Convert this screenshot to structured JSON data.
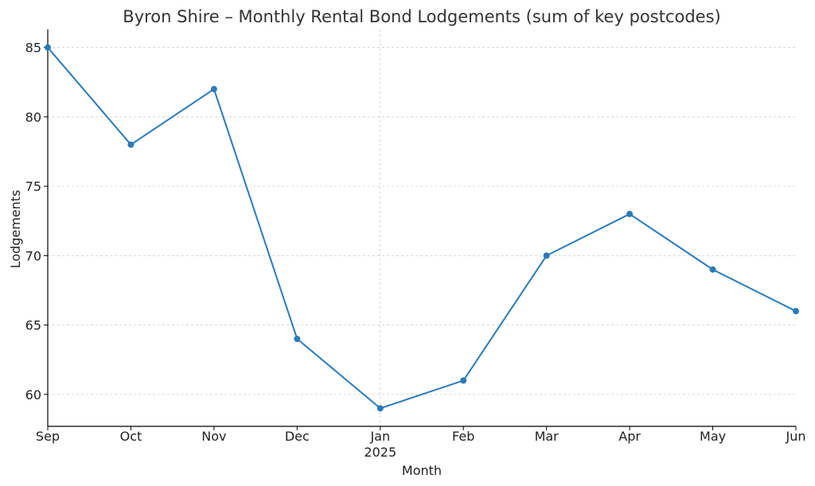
{
  "chart_data": {
    "type": "line",
    "title": "Byron Shire – Monthly Rental Bond Lodgements (sum of key postcodes)",
    "xlabel": "Month",
    "ylabel": "Lodgements",
    "categories": [
      "Sep",
      "Oct",
      "Nov",
      "Dec",
      "Jan",
      "Feb",
      "Mar",
      "Apr",
      "May",
      "Jun"
    ],
    "year_label": "2025",
    "series": [
      {
        "values": [
          85,
          78,
          82,
          64,
          59,
          61,
          70,
          73,
          69,
          66
        ]
      }
    ],
    "ylim": [
      57.7,
      86.3
    ],
    "yticks": [
      60,
      65,
      70,
      75,
      80,
      85
    ],
    "grid": true,
    "line_color": "#2a7ab9"
  }
}
